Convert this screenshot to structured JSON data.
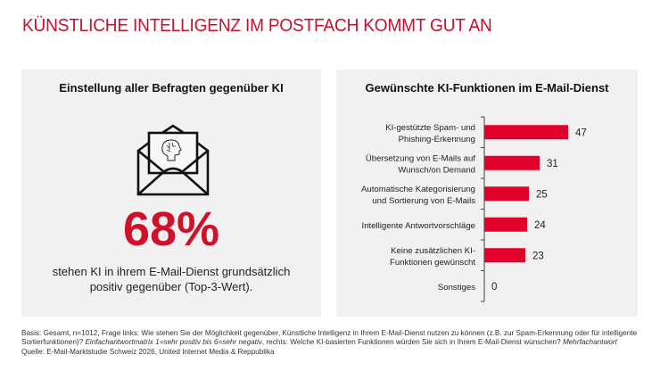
{
  "title": "KÜNSTLICHE INTELLIGENZ IM POSTFACH KOMMT GUT AN",
  "left_panel": {
    "title": "Einstellung aller Befragten gegenüber KI",
    "icon": "envelope-with-ai-head-icon",
    "stat_value": "68%",
    "stat_description_lines": [
      "stehen KI in ihrem E-Mail-Dienst grundsätzlich",
      "positiv gegenüber (Top-3-Wert)."
    ]
  },
  "right_panel": {
    "title": "Gewünschte KI-Funktionen im E-Mail-Dienst"
  },
  "colors": {
    "brand_red": "#c8102e",
    "bar_red": "#e0002a",
    "panel_bg": "#f1f1f1"
  },
  "chart_data": {
    "type": "bar",
    "orientation": "horizontal",
    "title": "Gewünschte KI-Funktionen im E-Mail-Dienst",
    "xlabel": "",
    "ylabel": "",
    "unit": "%",
    "xlim": [
      0,
      50
    ],
    "grid": false,
    "legend": "none",
    "categories": [
      [
        "KI-gestützte Spam- und",
        "Phishing-Erkennung"
      ],
      [
        "Übersetzung von E-Mails auf",
        "Wunsch/on Demand"
      ],
      [
        "Automatische Kategorisierung",
        "und Sortierung von E-Mails"
      ],
      [
        "Intelligente Antwortvorschläge"
      ],
      [
        "Keine zusätzlichen KI-",
        "Funktionen gewünscht"
      ],
      [
        "Sonstiges"
      ]
    ],
    "values": [
      47,
      31,
      25,
      24,
      23,
      0
    ]
  },
  "footnote": {
    "line1": "Basis: Gesamt, n=1012, Frage links: Wie stehen Sie der Möglichkeit gegenüber, Künstliche Intelligenz in Ihrem E-Mail-Dienst nutzen zu können (z.B. zur Spam-Erkennung oder für intelligente",
    "line2_a": "Sortierfunktionen)? ",
    "line2_b_italic": "Einfachantwortmatrix 1=sehr positiv bis 6=sehr negativ",
    "line2_c": ", rechts: Welche KI-basierten Funktionen würden Sie sich in Ihrem E-Mail-Dienst wünschen? ",
    "line2_d_italic": "Mehrfachantwort",
    "line3": "Quelle: E-Mail-Marktstudie Schweiz 2026, United Internet Media & Reppublika"
  }
}
